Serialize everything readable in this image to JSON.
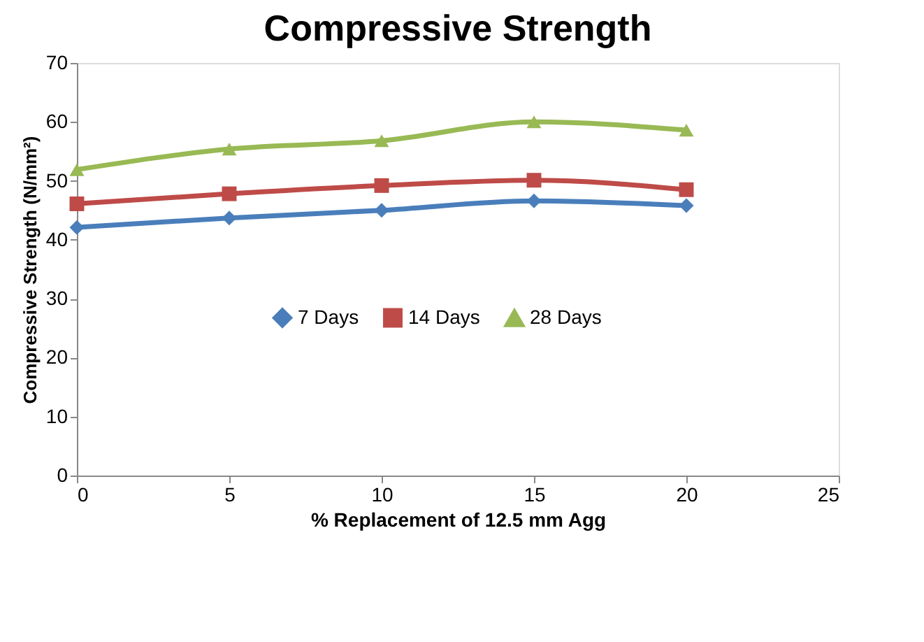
{
  "chart_data": {
    "type": "line",
    "title": "Compressive Strength",
    "xlabel": "% Replacement of 12.5 mm Agg",
    "ylabel": "Compressive Strength (N/mm²)",
    "x": [
      0,
      5,
      10,
      15,
      20
    ],
    "series": [
      {
        "name": "7 Days",
        "color": "#4a7ebb",
        "marker": "diamond",
        "values": [
          42.1,
          43.7,
          45.0,
          46.6,
          45.8
        ]
      },
      {
        "name": "14 Days",
        "color": "#be4b48",
        "marker": "square",
        "values": [
          46.1,
          47.8,
          49.2,
          50.1,
          48.5
        ]
      },
      {
        "name": "28 Days",
        "color": "#98b954",
        "marker": "triangle",
        "values": [
          51.9,
          55.4,
          56.8,
          60.0,
          58.6
        ]
      }
    ],
    "xlim": [
      0,
      25
    ],
    "xticks": [
      0,
      5,
      10,
      15,
      20,
      25
    ],
    "ylim": [
      0,
      70
    ],
    "yticks": [
      0,
      10,
      20,
      30,
      40,
      50,
      60,
      70
    ],
    "grid": false,
    "legend": "left",
    "line_style": "solid"
  }
}
